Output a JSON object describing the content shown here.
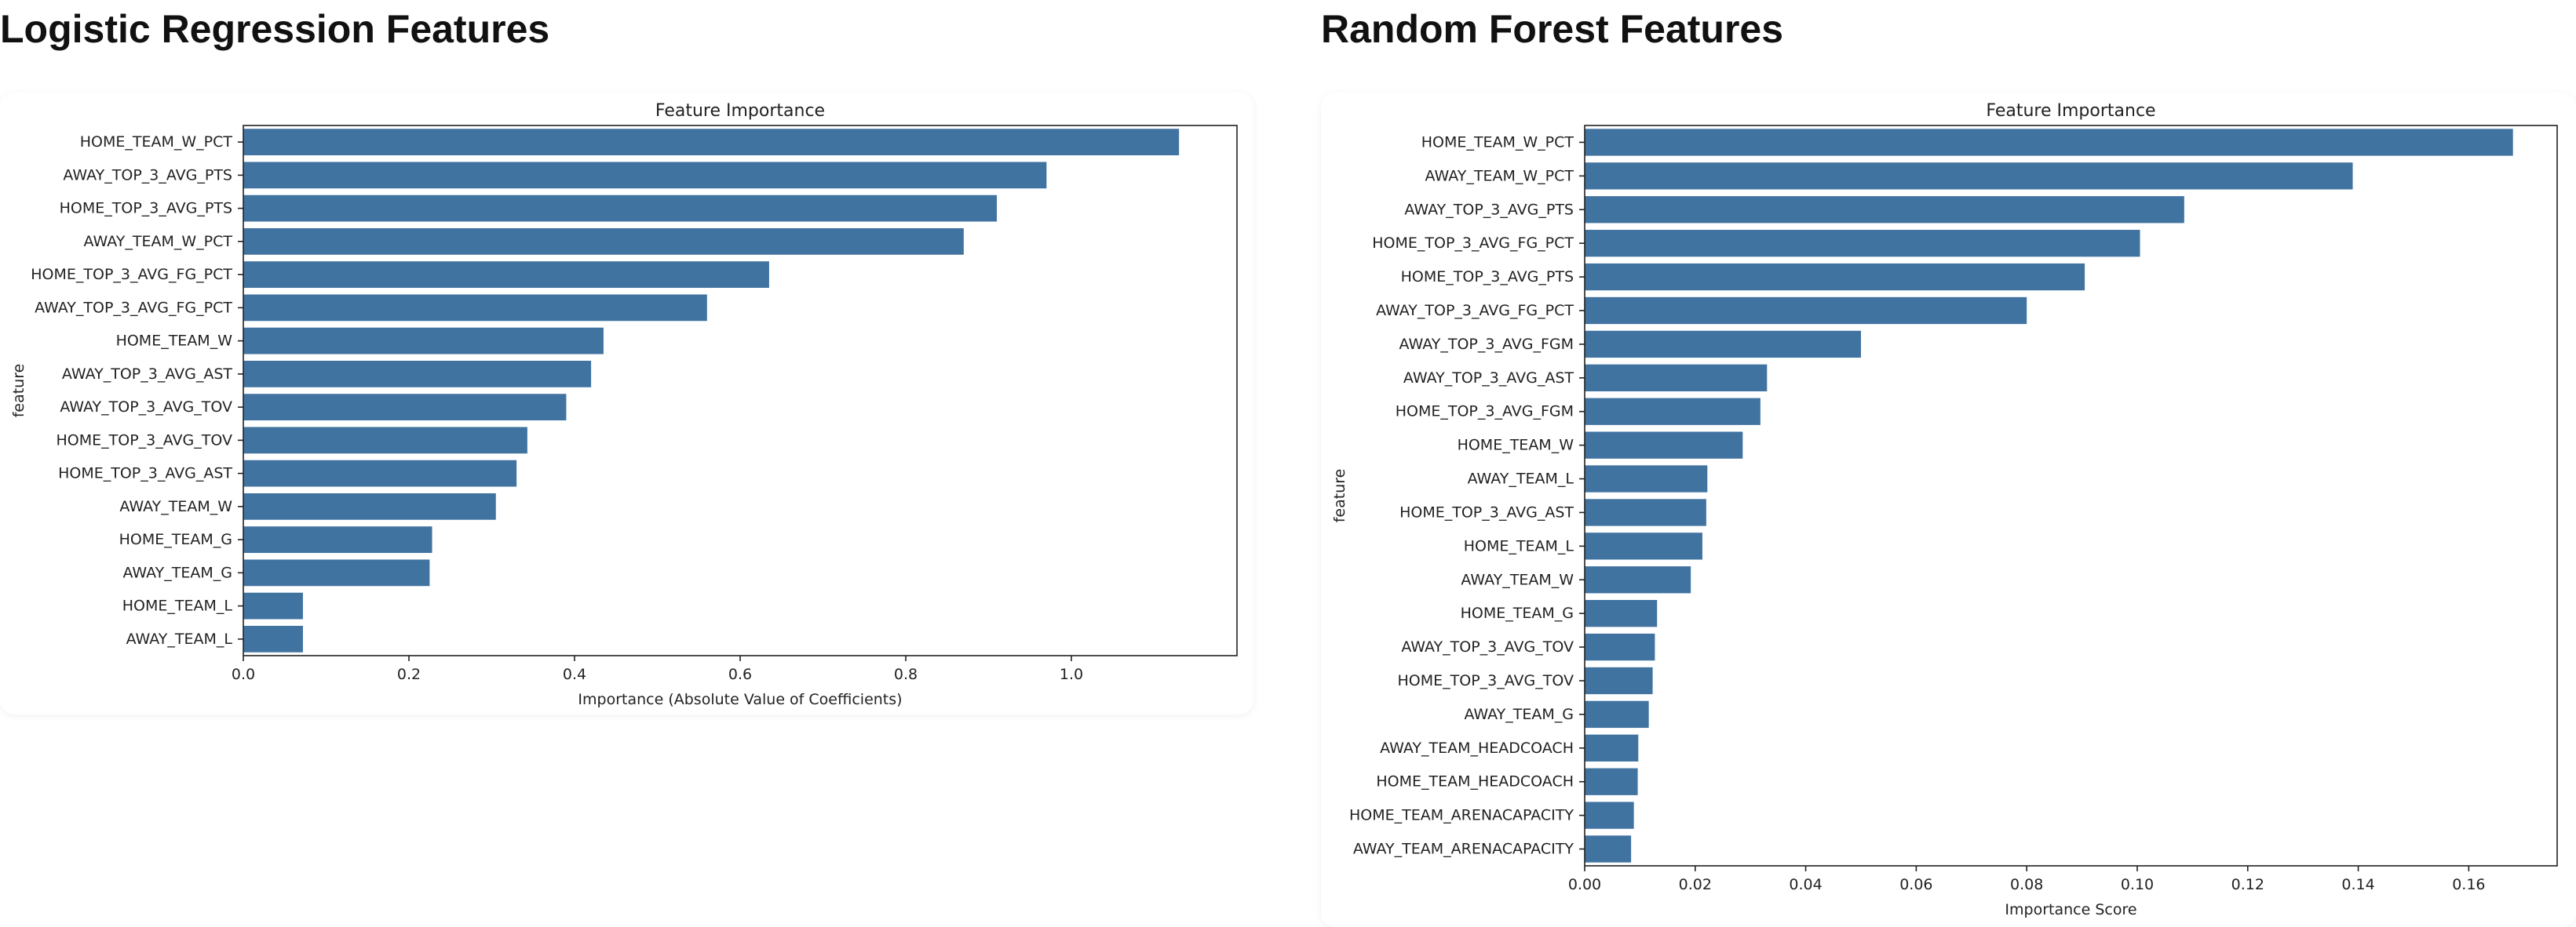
{
  "panels": {
    "left": {
      "title": "Logistic Regression Features"
    },
    "right": {
      "title": "Random Forest Features"
    }
  },
  "colors": {
    "bar": "#4173a1",
    "axis": "#222222",
    "background": "#ffffff"
  },
  "chart_data": [
    {
      "type": "bar",
      "orientation": "horizontal",
      "title": "Feature Importance",
      "xlabel": "Importance (Absolute Value of Coefficients)",
      "ylabel": "feature",
      "xlim": [
        0,
        1.2
      ],
      "xticks": [
        "0.0",
        "0.2",
        "0.4",
        "0.6",
        "0.8",
        "1.0"
      ],
      "grid": false,
      "categories": [
        "HOME_TEAM_W_PCT",
        "AWAY_TOP_3_AVG_PTS",
        "HOME_TOP_3_AVG_PTS",
        "AWAY_TEAM_W_PCT",
        "HOME_TOP_3_AVG_FG_PCT",
        "AWAY_TOP_3_AVG_FG_PCT",
        "HOME_TEAM_W",
        "AWAY_TOP_3_AVG_AST",
        "AWAY_TOP_3_AVG_TOV",
        "HOME_TOP_3_AVG_TOV",
        "HOME_TOP_3_AVG_AST",
        "AWAY_TEAM_W",
        "HOME_TEAM_G",
        "AWAY_TEAM_G",
        "HOME_TEAM_L",
        "AWAY_TEAM_L"
      ],
      "values": [
        1.13,
        0.97,
        0.91,
        0.87,
        0.635,
        0.56,
        0.435,
        0.42,
        0.39,
        0.343,
        0.33,
        0.305,
        0.228,
        0.225,
        0.072,
        0.072
      ]
    },
    {
      "type": "bar",
      "orientation": "horizontal",
      "title": "Feature Importance",
      "xlabel": "Importance Score",
      "ylabel": "feature",
      "xlim": [
        0,
        0.176
      ],
      "xticks": [
        "0.00",
        "0.02",
        "0.04",
        "0.06",
        "0.08",
        "0.10",
        "0.12",
        "0.14",
        "0.16"
      ],
      "grid": false,
      "categories": [
        "HOME_TEAM_W_PCT",
        "AWAY_TEAM_W_PCT",
        "AWAY_TOP_3_AVG_PTS",
        "HOME_TOP_3_AVG_FG_PCT",
        "HOME_TOP_3_AVG_PTS",
        "AWAY_TOP_3_AVG_FG_PCT",
        "AWAY_TOP_3_AVG_FGM",
        "AWAY_TOP_3_AVG_AST",
        "HOME_TOP_3_AVG_FGM",
        "HOME_TEAM_W",
        "AWAY_TEAM_L",
        "HOME_TOP_3_AVG_AST",
        "HOME_TEAM_L",
        "AWAY_TEAM_W",
        "HOME_TEAM_G",
        "AWAY_TOP_3_AVG_TOV",
        "HOME_TOP_3_AVG_TOV",
        "AWAY_TEAM_G",
        "AWAY_TEAM_HEADCOACH",
        "HOME_TEAM_HEADCOACH",
        "HOME_TEAM_ARENACAPACITY",
        "AWAY_TEAM_ARENACAPACITY"
      ],
      "values": [
        0.168,
        0.139,
        0.1085,
        0.1005,
        0.0905,
        0.08,
        0.05,
        0.033,
        0.0318,
        0.0286,
        0.0222,
        0.022,
        0.0213,
        0.0192,
        0.0131,
        0.0127,
        0.0123,
        0.0116,
        0.0097,
        0.0096,
        0.0089,
        0.0084
      ]
    }
  ]
}
